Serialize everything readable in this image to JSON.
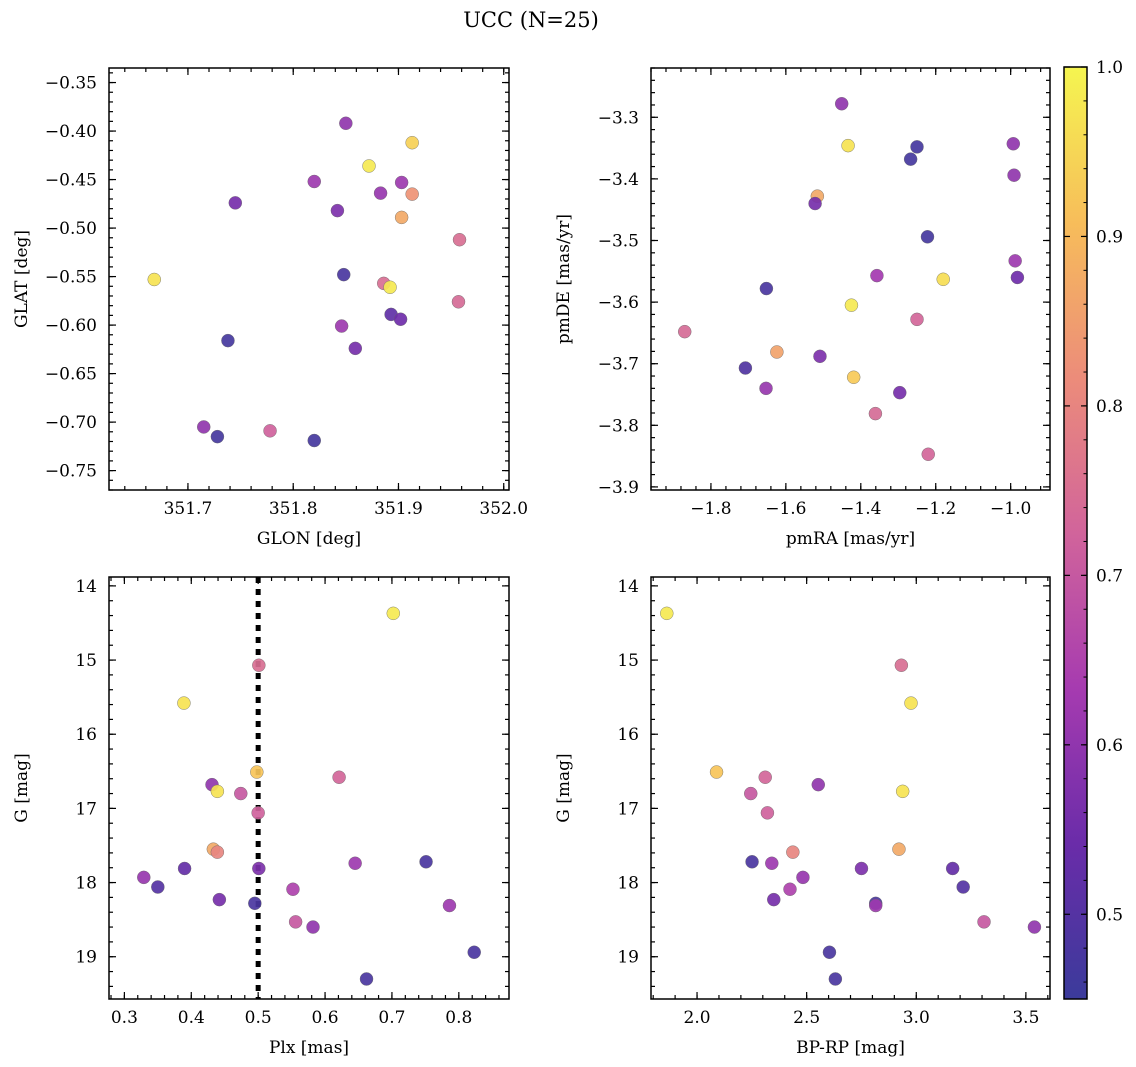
{
  "figure": {
    "title": "UCC (N=25)"
  },
  "colorbar": {
    "range": [
      0.45,
      1.0
    ],
    "ticks": [
      0.5,
      0.6,
      0.7,
      0.8,
      0.9,
      1.0
    ],
    "tick_labels": [
      "0.5",
      "0.6",
      "0.7",
      "0.8",
      "0.9",
      "1.0"
    ],
    "colormap": "plasma",
    "colors": [
      "#3b3b9b",
      "#6a2ca9",
      "#a63bb0",
      "#d1649b",
      "#ec8c7a",
      "#f7bd5a",
      "#f5f550"
    ]
  },
  "chart_data": [
    {
      "id": "radec",
      "type": "scatter",
      "xlabel": "GLON [deg]",
      "ylabel": "GLAT [deg]",
      "xlim": [
        351.625,
        352.005
      ],
      "ylim": [
        -0.77,
        -0.335
      ],
      "y_inverted": false,
      "xticks": [
        351.7,
        351.8,
        351.9,
        352.0
      ],
      "xtick_labels": [
        "351.7",
        "351.8",
        "351.9",
        "352.0"
      ],
      "yticks": [
        -0.75,
        -0.7,
        -0.65,
        -0.6,
        -0.55,
        -0.5,
        -0.45,
        -0.4,
        -0.35
      ],
      "ytick_labels": [
        "−0.75",
        "−0.70",
        "−0.65",
        "−0.60",
        "−0.55",
        "−0.50",
        "−0.45",
        "−0.40",
        "−0.35"
      ],
      "vline": null,
      "points": [
        {
          "x": 351.668,
          "y": -0.553,
          "c": 0.97
        },
        {
          "x": 351.745,
          "y": -0.474,
          "c": 0.56
        },
        {
          "x": 351.738,
          "y": -0.616,
          "c": 0.47
        },
        {
          "x": 351.715,
          "y": -0.705,
          "c": 0.6
        },
        {
          "x": 351.728,
          "y": -0.715,
          "c": 0.47
        },
        {
          "x": 351.778,
          "y": -0.709,
          "c": 0.72
        },
        {
          "x": 351.82,
          "y": -0.719,
          "c": 0.47
        },
        {
          "x": 351.82,
          "y": -0.452,
          "c": 0.62
        },
        {
          "x": 351.85,
          "y": -0.392,
          "c": 0.6
        },
        {
          "x": 351.872,
          "y": -0.436,
          "c": 0.98
        },
        {
          "x": 351.913,
          "y": -0.412,
          "c": 0.94
        },
        {
          "x": 351.842,
          "y": -0.482,
          "c": 0.57
        },
        {
          "x": 351.883,
          "y": -0.464,
          "c": 0.61
        },
        {
          "x": 351.903,
          "y": -0.453,
          "c": 0.62
        },
        {
          "x": 351.913,
          "y": -0.465,
          "c": 0.83
        },
        {
          "x": 351.903,
          "y": -0.489,
          "c": 0.87
        },
        {
          "x": 351.958,
          "y": -0.512,
          "c": 0.75
        },
        {
          "x": 351.848,
          "y": -0.548,
          "c": 0.48
        },
        {
          "x": 351.886,
          "y": -0.557,
          "c": 0.75
        },
        {
          "x": 351.892,
          "y": -0.561,
          "c": 0.98
        },
        {
          "x": 351.957,
          "y": -0.576,
          "c": 0.74
        },
        {
          "x": 351.893,
          "y": -0.589,
          "c": 0.52
        },
        {
          "x": 351.902,
          "y": -0.594,
          "c": 0.55
        },
        {
          "x": 351.846,
          "y": -0.601,
          "c": 0.62
        },
        {
          "x": 351.859,
          "y": -0.624,
          "c": 0.56
        }
      ]
    },
    {
      "id": "pm",
      "type": "scatter",
      "xlabel": "pmRA [mas/yr]",
      "ylabel": "pmDE [mas/yr]",
      "xlim": [
        -1.96,
        -0.895
      ],
      "ylim": [
        -3.905,
        -3.22
      ],
      "y_inverted": false,
      "xticks": [
        -1.8,
        -1.6,
        -1.4,
        -1.2,
        -1.0
      ],
      "xtick_labels": [
        "−1.8",
        "−1.6",
        "−1.4",
        "−1.2",
        "−1.0"
      ],
      "yticks": [
        -3.9,
        -3.8,
        -3.7,
        -3.6,
        -3.5,
        -3.4,
        -3.3
      ],
      "ytick_labels": [
        "−3.9",
        "−3.8",
        "−3.7",
        "−3.6",
        "−3.5",
        "−3.4",
        "−3.3"
      ],
      "vline": null,
      "points": [
        {
          "x": -1.451,
          "y": -3.278,
          "c": 0.6
        },
        {
          "x": -1.434,
          "y": -3.346,
          "c": 0.97
        },
        {
          "x": -1.25,
          "y": -3.348,
          "c": 0.47
        },
        {
          "x": -1.267,
          "y": -3.368,
          "c": 0.47
        },
        {
          "x": -0.993,
          "y": -3.343,
          "c": 0.6
        },
        {
          "x": -0.991,
          "y": -3.394,
          "c": 0.6
        },
        {
          "x": -1.516,
          "y": -3.428,
          "c": 0.87
        },
        {
          "x": -1.522,
          "y": -3.44,
          "c": 0.56
        },
        {
          "x": -1.222,
          "y": -3.494,
          "c": 0.47
        },
        {
          "x": -0.988,
          "y": -3.533,
          "c": 0.62
        },
        {
          "x": -0.982,
          "y": -3.56,
          "c": 0.55
        },
        {
          "x": -1.357,
          "y": -3.557,
          "c": 0.63
        },
        {
          "x": -1.18,
          "y": -3.563,
          "c": 0.96
        },
        {
          "x": -1.652,
          "y": -3.578,
          "c": 0.48
        },
        {
          "x": -1.425,
          "y": -3.605,
          "c": 0.98
        },
        {
          "x": -1.25,
          "y": -3.628,
          "c": 0.73
        },
        {
          "x": -1.87,
          "y": -3.648,
          "c": 0.74
        },
        {
          "x": -1.624,
          "y": -3.681,
          "c": 0.86
        },
        {
          "x": -1.509,
          "y": -3.688,
          "c": 0.57
        },
        {
          "x": -1.708,
          "y": -3.707,
          "c": 0.49
        },
        {
          "x": -1.419,
          "y": -3.722,
          "c": 0.93
        },
        {
          "x": -1.653,
          "y": -3.74,
          "c": 0.61
        },
        {
          "x": -1.296,
          "y": -3.747,
          "c": 0.56
        },
        {
          "x": -1.361,
          "y": -3.781,
          "c": 0.74
        },
        {
          "x": -1.22,
          "y": -3.847,
          "c": 0.73
        }
      ]
    },
    {
      "id": "plx",
      "type": "scatter",
      "xlabel": "Plx [mas]",
      "ylabel": "G [mag]",
      "xlim": [
        0.277,
        0.875
      ],
      "ylim": [
        13.88,
        19.57
      ],
      "y_inverted": true,
      "xticks": [
        0.3,
        0.4,
        0.5,
        0.6,
        0.7,
        0.8
      ],
      "xtick_labels": [
        "0.3",
        "0.4",
        "0.5",
        "0.6",
        "0.7",
        "0.8"
      ],
      "yticks": [
        14,
        15,
        16,
        17,
        18,
        19
      ],
      "ytick_labels": [
        "14",
        "15",
        "16",
        "17",
        "18",
        "19"
      ],
      "vline": 0.5,
      "points": [
        {
          "x": 0.702,
          "y": 14.37,
          "c": 0.98
        },
        {
          "x": 0.501,
          "y": 15.07,
          "c": 0.75
        },
        {
          "x": 0.389,
          "y": 15.58,
          "c": 0.97
        },
        {
          "x": 0.621,
          "y": 16.58,
          "c": 0.73
        },
        {
          "x": 0.498,
          "y": 16.51,
          "c": 0.92
        },
        {
          "x": 0.431,
          "y": 16.68,
          "c": 0.6
        },
        {
          "x": 0.439,
          "y": 16.77,
          "c": 0.97
        },
        {
          "x": 0.474,
          "y": 16.8,
          "c": 0.7
        },
        {
          "x": 0.5,
          "y": 17.06,
          "c": 0.72
        },
        {
          "x": 0.433,
          "y": 17.55,
          "c": 0.87
        },
        {
          "x": 0.439,
          "y": 17.59,
          "c": 0.8
        },
        {
          "x": 0.751,
          "y": 17.72,
          "c": 0.48
        },
        {
          "x": 0.645,
          "y": 17.74,
          "c": 0.62
        },
        {
          "x": 0.501,
          "y": 17.81,
          "c": 0.57
        },
        {
          "x": 0.39,
          "y": 17.81,
          "c": 0.53
        },
        {
          "x": 0.329,
          "y": 17.93,
          "c": 0.61
        },
        {
          "x": 0.35,
          "y": 18.06,
          "c": 0.5
        },
        {
          "x": 0.552,
          "y": 18.09,
          "c": 0.65
        },
        {
          "x": 0.442,
          "y": 18.23,
          "c": 0.56
        },
        {
          "x": 0.495,
          "y": 18.28,
          "c": 0.48
        },
        {
          "x": 0.786,
          "y": 18.31,
          "c": 0.62
        },
        {
          "x": 0.556,
          "y": 18.53,
          "c": 0.7
        },
        {
          "x": 0.582,
          "y": 18.6,
          "c": 0.6
        },
        {
          "x": 0.823,
          "y": 18.94,
          "c": 0.48
        },
        {
          "x": 0.662,
          "y": 19.3,
          "c": 0.48
        }
      ]
    },
    {
      "id": "cmd",
      "type": "scatter",
      "xlabel": "BP-RP [mag]",
      "ylabel": "G [mag]",
      "xlim": [
        1.79,
        3.61
      ],
      "ylim": [
        13.88,
        19.57
      ],
      "y_inverted": true,
      "xticks": [
        2.0,
        2.5,
        3.0,
        3.5
      ],
      "xtick_labels": [
        "2.0",
        "2.5",
        "3.0",
        "3.5"
      ],
      "yticks": [
        14,
        15,
        16,
        17,
        18,
        19
      ],
      "ytick_labels": [
        "14",
        "15",
        "16",
        "17",
        "18",
        "19"
      ],
      "vline": null,
      "points": [
        {
          "x": 1.862,
          "y": 14.37,
          "c": 0.98
        },
        {
          "x": 2.932,
          "y": 15.07,
          "c": 0.75
        },
        {
          "x": 2.976,
          "y": 15.58,
          "c": 0.97
        },
        {
          "x": 2.089,
          "y": 16.51,
          "c": 0.92
        },
        {
          "x": 2.311,
          "y": 16.58,
          "c": 0.73
        },
        {
          "x": 2.553,
          "y": 16.68,
          "c": 0.6
        },
        {
          "x": 2.245,
          "y": 16.8,
          "c": 0.7
        },
        {
          "x": 2.938,
          "y": 16.77,
          "c": 0.97
        },
        {
          "x": 2.321,
          "y": 17.06,
          "c": 0.72
        },
        {
          "x": 2.921,
          "y": 17.55,
          "c": 0.87
        },
        {
          "x": 2.437,
          "y": 17.59,
          "c": 0.8
        },
        {
          "x": 2.251,
          "y": 17.72,
          "c": 0.48
        },
        {
          "x": 2.341,
          "y": 17.74,
          "c": 0.62
        },
        {
          "x": 2.75,
          "y": 17.81,
          "c": 0.57
        },
        {
          "x": 3.166,
          "y": 17.81,
          "c": 0.53
        },
        {
          "x": 2.483,
          "y": 17.93,
          "c": 0.61
        },
        {
          "x": 3.214,
          "y": 18.06,
          "c": 0.5
        },
        {
          "x": 2.424,
          "y": 18.09,
          "c": 0.65
        },
        {
          "x": 2.35,
          "y": 18.23,
          "c": 0.56
        },
        {
          "x": 2.815,
          "y": 18.28,
          "c": 0.48
        },
        {
          "x": 2.815,
          "y": 18.31,
          "c": 0.62
        },
        {
          "x": 3.309,
          "y": 18.53,
          "c": 0.7
        },
        {
          "x": 3.539,
          "y": 18.6,
          "c": 0.6
        },
        {
          "x": 2.604,
          "y": 18.94,
          "c": 0.48
        },
        {
          "x": 2.631,
          "y": 19.3,
          "c": 0.48
        }
      ]
    }
  ]
}
